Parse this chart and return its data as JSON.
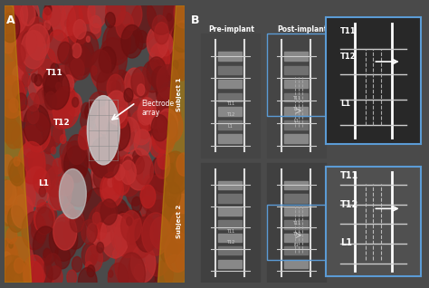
{
  "fig_width": 4.74,
  "fig_height": 3.18,
  "dpi": 100,
  "bg_color": "#4a4a4a",
  "panel_a_label": "A",
  "panel_b_label": "B",
  "panel_a_bg": "#8b2020",
  "panel_b_bg": "#555555",
  "pre_implant_label": "Pre-implant",
  "post_implant_label": "Post-implant",
  "subject1_label": "Subject 1",
  "subject2_label": "Subject 2",
  "t11_label": "T11",
  "t12_label": "T12",
  "l1_label": "L1",
  "electrode_array_label": "Electrode\narray",
  "label_color": "#ffffff",
  "arrow_color": "#ffffff",
  "box_border_color": "#5b9bd5",
  "zoom_box_color": "#5b9bd5"
}
